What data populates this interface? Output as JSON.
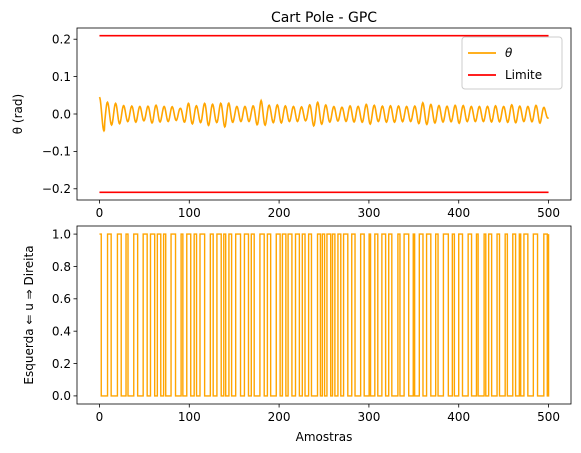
{
  "chart_data": [
    {
      "type": "line",
      "title": "Cart Pole - GPC",
      "xlabel": "",
      "ylabel": "θ (rad)",
      "xlim": [
        -25,
        525
      ],
      "ylim": [
        -0.23,
        0.23
      ],
      "xticks": [
        0,
        100,
        200,
        300,
        400,
        500
      ],
      "xtick_labels": [
        "0",
        "100",
        "200",
        "300",
        "400",
        "500"
      ],
      "yticks": [
        -0.2,
        -0.1,
        0.0,
        0.1,
        0.2
      ],
      "ytick_labels": [
        "−0.2",
        "−0.1",
        "0.0",
        "0.1",
        "0.2"
      ],
      "legend_position": "top-right",
      "series": [
        {
          "name": "θ",
          "color": "#ffa500",
          "kind": "oscillation",
          "x_range": [
            0,
            500
          ],
          "initial_value": 0.045,
          "typical_amplitude": 0.02,
          "period": 9,
          "values": [
            0.045,
            -0.03,
            0.028,
            -0.02,
            0.022,
            -0.018,
            0.025,
            -0.02,
            0.02,
            -0.015,
            0.03,
            -0.02,
            0.032,
            -0.022,
            0.035,
            -0.02,
            0.02,
            -0.02,
            0.036,
            -0.022,
            0.025,
            -0.02,
            0.02,
            -0.018,
            0.034,
            -0.025,
            0.02,
            -0.018,
            0.022,
            -0.02,
            0.028,
            -0.02,
            0.022,
            -0.022,
            0.02,
            -0.02,
            0.03,
            -0.025,
            0.022,
            -0.02,
            0.025,
            -0.02,
            0.02,
            -0.02,
            0.022,
            -0.02,
            0.025,
            -0.02,
            0.02,
            -0.025,
            0.01
          ]
        },
        {
          "name": "Limite",
          "color": "#ff0000",
          "kind": "limits",
          "x_range": [
            0,
            500
          ],
          "upper": 0.2095,
          "lower": -0.2095
        }
      ]
    },
    {
      "type": "line",
      "title": "",
      "xlabel": "Amostras",
      "ylabel": "Esquerda ⇐ u ⇒ Direita",
      "xlim": [
        -25,
        525
      ],
      "ylim": [
        -0.05,
        1.05
      ],
      "xticks": [
        0,
        100,
        200,
        300,
        400,
        500
      ],
      "xtick_labels": [
        "0",
        "100",
        "200",
        "300",
        "400",
        "500"
      ],
      "yticks": [
        0.0,
        0.2,
        0.4,
        0.6,
        0.8,
        1.0
      ],
      "ytick_labels": [
        "0.0",
        "0.2",
        "0.4",
        "0.6",
        "0.8",
        "1.0"
      ],
      "series": [
        {
          "name": "",
          "color": "#ffa500",
          "kind": "binary-square-wave",
          "x_range": [
            0,
            500
          ],
          "levels": [
            0,
            1
          ],
          "typical_period": 9
        }
      ]
    }
  ]
}
